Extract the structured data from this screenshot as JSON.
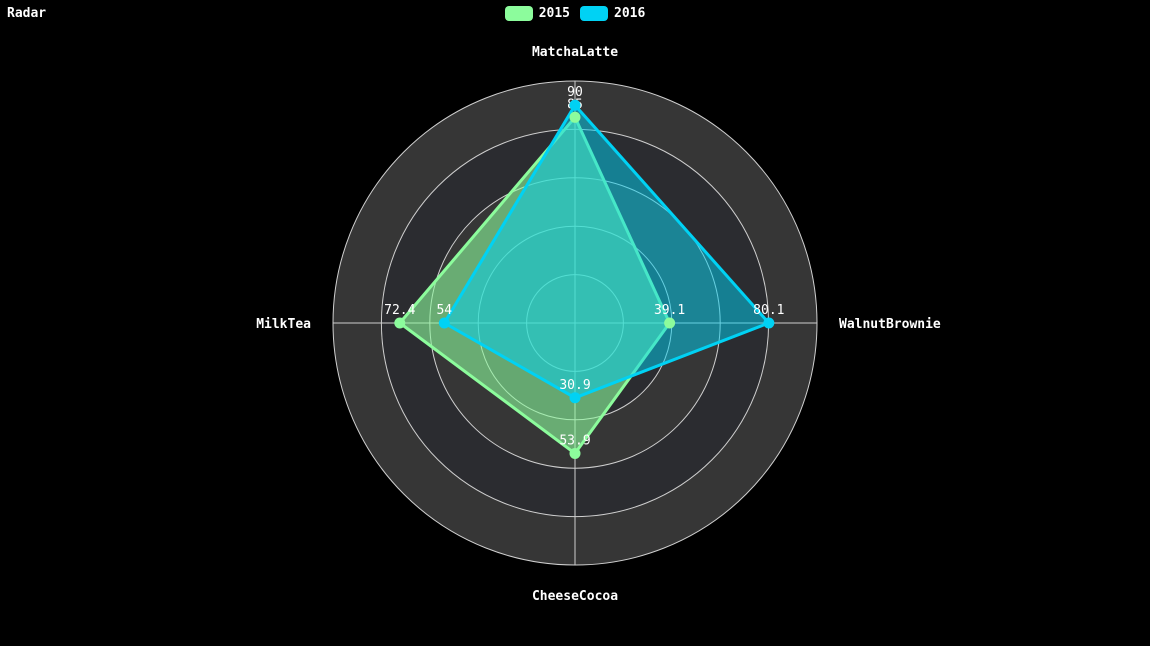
{
  "chart_data": {
    "type": "radar",
    "title": "Radar",
    "indicators": [
      "MatchaLatte",
      "WalnutBrownie",
      "CheeseCocoa",
      "MilkTea"
    ],
    "max": 100,
    "rings": 5,
    "series": [
      {
        "name": "2015",
        "values": [
          85,
          39.1,
          53.9,
          72.4
        ],
        "color": "#8cfc9c"
      },
      {
        "name": "2016",
        "values": [
          90,
          80.1,
          30.9,
          54
        ],
        "color": "#00d2f4"
      }
    ],
    "ring_colors": [
      "#363636",
      "#2b2c30"
    ],
    "axis_color": "#ffffff",
    "legend_position": "top-center"
  }
}
